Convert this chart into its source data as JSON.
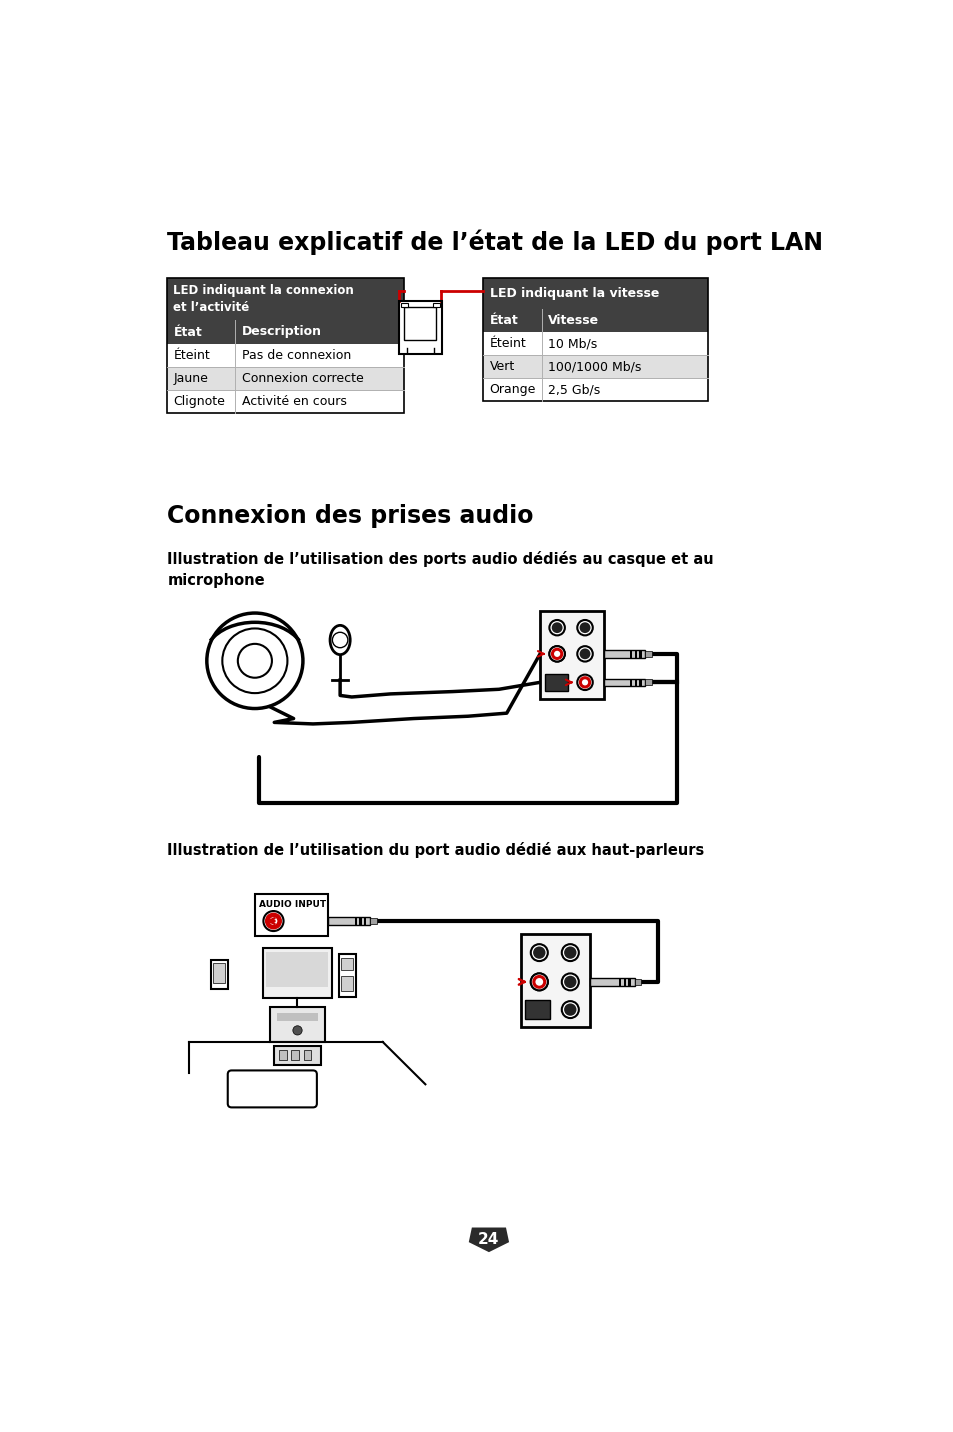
{
  "title1": "Tableau explicatif de l’état de la LED du port LAN",
  "title2": "Connexion des prises audio",
  "subtitle1": "Illustration de l’utilisation des ports audio dédiés au casque et au\nmicrophone",
  "subtitle2": "Illustration de l’utilisation du port audio dédié aux haut-parleurs",
  "table1_header1": "LED indiquant la connexion\net l’activité",
  "table1_col1_header": "État",
  "table1_col2_header": "Description",
  "table1_rows": [
    [
      "Éteint",
      "Pas de connexion"
    ],
    [
      "Jaune",
      "Connexion correcte"
    ],
    [
      "Clignote",
      "Activité en cours"
    ]
  ],
  "table2_header1": "LED indiquant la vitesse",
  "table2_col1_header": "État",
  "table2_col2_header": "Vitesse",
  "table2_rows": [
    [
      "Éteint",
      "10 Mb/s"
    ],
    [
      "Vert",
      "100/1000 Mb/s"
    ],
    [
      "Orange",
      "2,5 Gb/s"
    ]
  ],
  "page_num": "24",
  "bg_color": "#ffffff",
  "header_bg": "#404040",
  "row_alt1": "#ffffff",
  "row_alt2": "#e0e0e0",
  "red_color": "#cc0000",
  "audio_input_label": "AUDIO INPUT"
}
